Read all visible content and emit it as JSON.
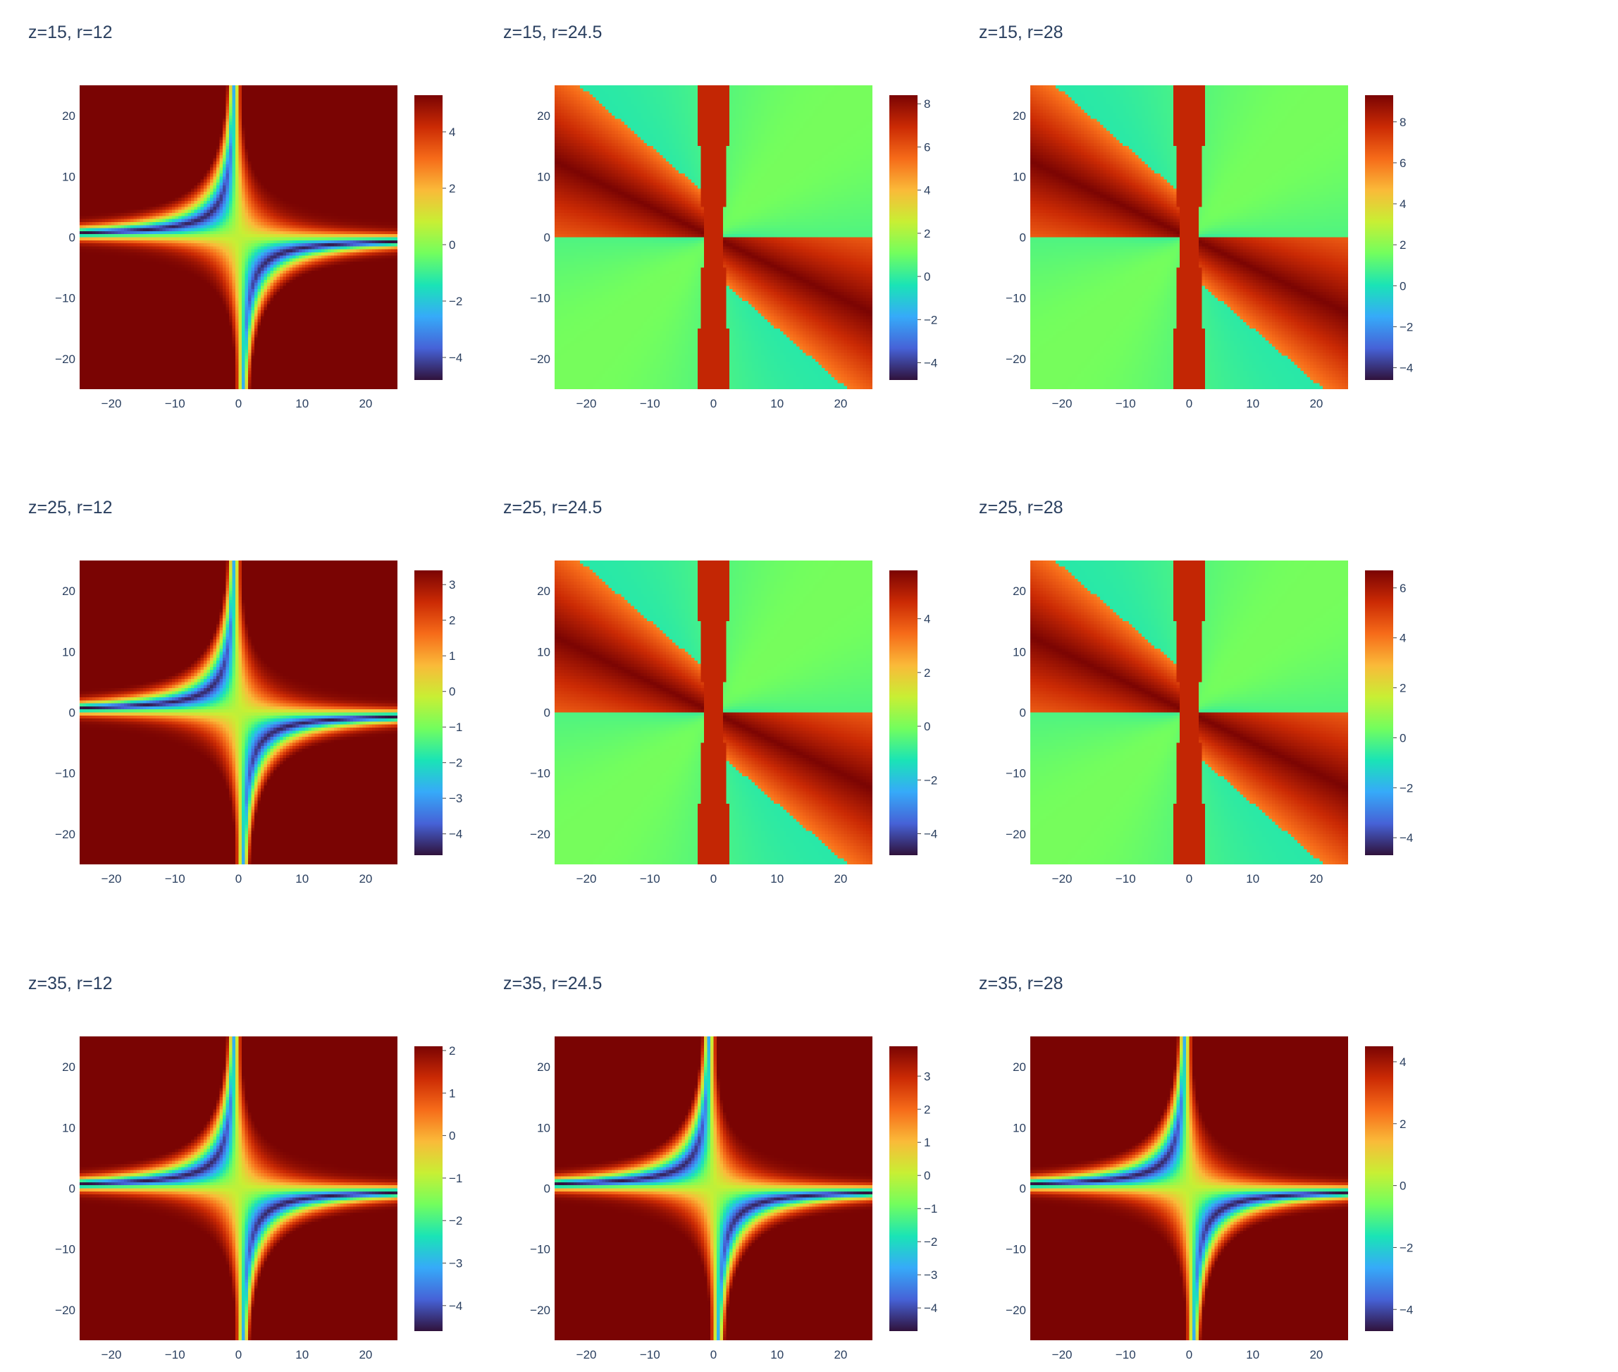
{
  "colorscale": {
    "name": "turbo",
    "stops": [
      "#30123b",
      "#4662d7",
      "#36aaf9",
      "#1ae4b6",
      "#72fe5e",
      "#c8ef34",
      "#faba39",
      "#f66b19",
      "#cb2a04",
      "#7a0403"
    ]
  },
  "chart_data": [
    {
      "type": "heatmap",
      "title": "z=15, r=12",
      "mode": "smooth",
      "r": 12,
      "z": 15,
      "xlim": [
        -25,
        25
      ],
      "ylim": [
        -25,
        25
      ],
      "x_ticks": [
        -20,
        -10,
        0,
        10,
        20
      ],
      "y_ticks": [
        -20,
        -10,
        0,
        10,
        20
      ],
      "zlim": [
        -4.8,
        5.3
      ],
      "colorbar_ticks": [
        -4,
        -2,
        0,
        2,
        4
      ]
    },
    {
      "type": "heatmap",
      "title": "z=15, r=24.5",
      "mode": "wrapped",
      "r": 24.5,
      "z": 15,
      "xlim": [
        -25,
        25
      ],
      "ylim": [
        -25,
        25
      ],
      "x_ticks": [
        -20,
        -10,
        0,
        10,
        20
      ],
      "y_ticks": [
        -20,
        -10,
        0,
        10,
        20
      ],
      "zlim": [
        -4.8,
        8.4
      ],
      "colorbar_ticks": [
        -4,
        -2,
        0,
        2,
        4,
        6,
        8
      ]
    },
    {
      "type": "heatmap",
      "title": "z=15, r=28",
      "mode": "wrapped",
      "r": 28,
      "z": 15,
      "xlim": [
        -25,
        25
      ],
      "ylim": [
        -25,
        25
      ],
      "x_ticks": [
        -20,
        -10,
        0,
        10,
        20
      ],
      "y_ticks": [
        -20,
        -10,
        0,
        10,
        20
      ],
      "zlim": [
        -4.6,
        9.3
      ],
      "colorbar_ticks": [
        -4,
        -2,
        0,
        2,
        4,
        6,
        8
      ]
    },
    {
      "type": "heatmap",
      "title": "z=25, r=12",
      "mode": "smooth",
      "r": 12,
      "z": 25,
      "xlim": [
        -25,
        25
      ],
      "ylim": [
        -25,
        25
      ],
      "x_ticks": [
        -20,
        -10,
        0,
        10,
        20
      ],
      "y_ticks": [
        -20,
        -10,
        0,
        10,
        20
      ],
      "zlim": [
        -4.6,
        3.4
      ],
      "colorbar_ticks": [
        -4,
        -3,
        -2,
        -1,
        0,
        1,
        2,
        3
      ]
    },
    {
      "type": "heatmap",
      "title": "z=25, r=24.5",
      "mode": "wrapped",
      "r": 24.5,
      "z": 25,
      "xlim": [
        -25,
        25
      ],
      "ylim": [
        -25,
        25
      ],
      "x_ticks": [
        -20,
        -10,
        0,
        10,
        20
      ],
      "y_ticks": [
        -20,
        -10,
        0,
        10,
        20
      ],
      "zlim": [
        -4.8,
        5.8
      ],
      "colorbar_ticks": [
        -4,
        -2,
        0,
        2,
        4
      ]
    },
    {
      "type": "heatmap",
      "title": "z=25, r=28",
      "mode": "wrapped",
      "r": 28,
      "z": 25,
      "xlim": [
        -25,
        25
      ],
      "ylim": [
        -25,
        25
      ],
      "x_ticks": [
        -20,
        -10,
        0,
        10,
        20
      ],
      "y_ticks": [
        -20,
        -10,
        0,
        10,
        20
      ],
      "zlim": [
        -4.7,
        6.7
      ],
      "colorbar_ticks": [
        -4,
        -2,
        0,
        2,
        4,
        6
      ]
    },
    {
      "type": "heatmap",
      "title": "z=35, r=12",
      "mode": "smooth",
      "r": 12,
      "z": 35,
      "xlim": [
        -25,
        25
      ],
      "ylim": [
        -25,
        25
      ],
      "x_ticks": [
        -20,
        -10,
        0,
        10,
        20
      ],
      "y_ticks": [
        -20,
        -10,
        0,
        10,
        20
      ],
      "zlim": [
        -4.6,
        2.1
      ],
      "colorbar_ticks": [
        -4,
        -3,
        -2,
        -1,
        0,
        1,
        2
      ]
    },
    {
      "type": "heatmap",
      "title": "z=35, r=24.5",
      "mode": "smooth",
      "r": 24.5,
      "z": 35,
      "xlim": [
        -25,
        25
      ],
      "ylim": [
        -25,
        25
      ],
      "x_ticks": [
        -20,
        -10,
        0,
        10,
        20
      ],
      "y_ticks": [
        -20,
        -10,
        0,
        10,
        20
      ],
      "zlim": [
        -4.7,
        3.9
      ],
      "colorbar_ticks": [
        -4,
        -3,
        -2,
        -1,
        0,
        1,
        2,
        3
      ]
    },
    {
      "type": "heatmap",
      "title": "z=35, r=28",
      "mode": "smooth",
      "r": 28,
      "z": 35,
      "xlim": [
        -25,
        25
      ],
      "ylim": [
        -25,
        25
      ],
      "x_ticks": [
        -20,
        -10,
        0,
        10,
        20
      ],
      "y_ticks": [
        -20,
        -10,
        0,
        10,
        20
      ],
      "zlim": [
        -4.7,
        4.5
      ],
      "colorbar_ticks": [
        -4,
        -2,
        0,
        2,
        4
      ]
    }
  ]
}
